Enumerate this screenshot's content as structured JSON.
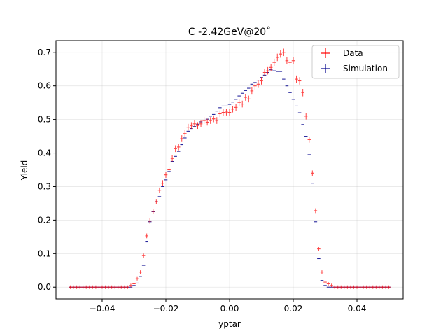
{
  "chart_data": {
    "type": "scatter",
    "title": "C -2.42GeV@20˚",
    "xlabel": "yptar",
    "ylabel": "Yield",
    "xlim": [
      -0.0545,
      0.0545
    ],
    "ylim": [
      -0.035,
      0.735
    ],
    "xticks": [
      -0.04,
      -0.02,
      0.0,
      0.02,
      0.04
    ],
    "xtick_labels": [
      "−0.04",
      "−0.02",
      "0.00",
      "0.02",
      "0.04"
    ],
    "yticks": [
      0.0,
      0.1,
      0.2,
      0.3,
      0.4,
      0.5,
      0.6,
      0.7
    ],
    "ytick_labels": [
      "0.0",
      "0.1",
      "0.2",
      "0.3",
      "0.4",
      "0.5",
      "0.6",
      "0.7"
    ],
    "grid": true,
    "legend": "top-right",
    "bin_halfwidth": 0.0005,
    "series": [
      {
        "name": "Data",
        "color": "#ff0000",
        "x": [
          -0.05,
          -0.049,
          -0.048,
          -0.047,
          -0.046,
          -0.045,
          -0.044,
          -0.043,
          -0.042,
          -0.041,
          -0.04,
          -0.039,
          -0.038,
          -0.037,
          -0.036,
          -0.035,
          -0.034,
          -0.033,
          -0.032,
          -0.031,
          -0.03,
          -0.029,
          -0.028,
          -0.027,
          -0.026,
          -0.025,
          -0.024,
          -0.023,
          -0.022,
          -0.021,
          -0.02,
          -0.019,
          -0.018,
          -0.017,
          -0.016,
          -0.015,
          -0.014,
          -0.013,
          -0.012,
          -0.011,
          -0.01,
          -0.009,
          -0.008,
          -0.007,
          -0.006,
          -0.005,
          -0.004,
          -0.003,
          -0.002,
          -0.001,
          0.0,
          0.001,
          0.002,
          0.003,
          0.004,
          0.005,
          0.006,
          0.007,
          0.008,
          0.009,
          0.01,
          0.011,
          0.012,
          0.013,
          0.014,
          0.015,
          0.016,
          0.017,
          0.018,
          0.019,
          0.02,
          0.021,
          0.022,
          0.023,
          0.024,
          0.025,
          0.026,
          0.027,
          0.028,
          0.029,
          0.03,
          0.031,
          0.032,
          0.033,
          0.034,
          0.035,
          0.036,
          0.037,
          0.038,
          0.039,
          0.04,
          0.041,
          0.042,
          0.043,
          0.044,
          0.045,
          0.046,
          0.047,
          0.048,
          0.049,
          0.05
        ],
        "y": [
          0,
          0,
          0,
          0,
          0,
          0,
          0,
          0,
          0,
          0,
          0,
          0,
          0,
          0,
          0,
          0,
          0,
          0,
          0,
          0.005,
          0.01,
          0.025,
          0.045,
          0.094,
          0.153,
          0.197,
          0.226,
          0.255,
          0.289,
          0.31,
          0.335,
          0.35,
          0.384,
          0.413,
          0.418,
          0.443,
          0.458,
          0.477,
          0.482,
          0.487,
          0.482,
          0.487,
          0.497,
          0.492,
          0.497,
          0.502,
          0.497,
          0.517,
          0.521,
          0.522,
          0.521,
          0.531,
          0.536,
          0.551,
          0.546,
          0.566,
          0.561,
          0.585,
          0.6,
          0.605,
          0.615,
          0.64,
          0.645,
          0.655,
          0.67,
          0.685,
          0.695,
          0.7,
          0.675,
          0.67,
          0.675,
          0.62,
          0.615,
          0.58,
          0.51,
          0.44,
          0.34,
          0.228,
          0.114,
          0.045,
          0.015,
          0.01,
          0.005,
          0,
          0,
          0,
          0,
          0,
          0,
          0,
          0,
          0,
          0,
          0,
          0,
          0,
          0,
          0,
          0,
          0,
          0
        ],
        "yerr": [
          0,
          0,
          0,
          0,
          0,
          0,
          0,
          0,
          0,
          0,
          0,
          0,
          0,
          0,
          0,
          0,
          0,
          0,
          0,
          0.002,
          0.003,
          0.004,
          0.005,
          0.006,
          0.007,
          0.008,
          0.008,
          0.008,
          0.008,
          0.009,
          0.009,
          0.009,
          0.009,
          0.01,
          0.01,
          0.01,
          0.01,
          0.01,
          0.01,
          0.01,
          0.01,
          0.01,
          0.01,
          0.01,
          0.01,
          0.01,
          0.01,
          0.01,
          0.01,
          0.01,
          0.01,
          0.01,
          0.01,
          0.01,
          0.01,
          0.01,
          0.01,
          0.011,
          0.011,
          0.011,
          0.011,
          0.011,
          0.011,
          0.011,
          0.011,
          0.011,
          0.011,
          0.011,
          0.011,
          0.011,
          0.011,
          0.011,
          0.011,
          0.011,
          0.01,
          0.009,
          0.008,
          0.007,
          0.005,
          0.003,
          0.002,
          0.002,
          0.001,
          0,
          0,
          0,
          0,
          0,
          0,
          0,
          0,
          0,
          0,
          0,
          0,
          0,
          0,
          0,
          0,
          0,
          0
        ]
      },
      {
        "name": "Simulation",
        "color": "#00008b",
        "x": [
          -0.05,
          -0.049,
          -0.048,
          -0.047,
          -0.046,
          -0.045,
          -0.044,
          -0.043,
          -0.042,
          -0.041,
          -0.04,
          -0.039,
          -0.038,
          -0.037,
          -0.036,
          -0.035,
          -0.034,
          -0.033,
          -0.032,
          -0.031,
          -0.03,
          -0.029,
          -0.028,
          -0.027,
          -0.026,
          -0.025,
          -0.024,
          -0.023,
          -0.022,
          -0.021,
          -0.02,
          -0.019,
          -0.018,
          -0.017,
          -0.016,
          -0.015,
          -0.014,
          -0.013,
          -0.012,
          -0.011,
          -0.01,
          -0.009,
          -0.008,
          -0.007,
          -0.006,
          -0.005,
          -0.004,
          -0.003,
          -0.002,
          -0.001,
          0.0,
          0.001,
          0.002,
          0.003,
          0.004,
          0.005,
          0.006,
          0.007,
          0.008,
          0.009,
          0.01,
          0.011,
          0.012,
          0.013,
          0.014,
          0.015,
          0.016,
          0.017,
          0.018,
          0.019,
          0.02,
          0.021,
          0.022,
          0.023,
          0.024,
          0.025,
          0.026,
          0.027,
          0.028,
          0.029,
          0.03,
          0.031,
          0.032,
          0.033,
          0.034,
          0.035,
          0.036,
          0.037,
          0.038,
          0.039,
          0.04,
          0.041,
          0.042,
          0.043,
          0.044,
          0.045,
          0.046,
          0.047,
          0.048,
          0.049,
          0.05
        ],
        "y": [
          0,
          0,
          0,
          0,
          0,
          0,
          0,
          0,
          0,
          0,
          0,
          0,
          0,
          0,
          0,
          0,
          0,
          0,
          0,
          0,
          0.005,
          0.012,
          0.032,
          0.065,
          0.135,
          0.195,
          0.225,
          0.255,
          0.27,
          0.3,
          0.32,
          0.345,
          0.375,
          0.39,
          0.405,
          0.425,
          0.445,
          0.465,
          0.473,
          0.479,
          0.486,
          0.493,
          0.498,
          0.501,
          0.51,
          0.515,
          0.525,
          0.535,
          0.54,
          0.54,
          0.545,
          0.552,
          0.56,
          0.57,
          0.578,
          0.586,
          0.593,
          0.605,
          0.61,
          0.617,
          0.625,
          0.632,
          0.64,
          0.648,
          0.645,
          0.643,
          0.643,
          0.62,
          0.6,
          0.58,
          0.56,
          0.54,
          0.52,
          0.485,
          0.45,
          0.395,
          0.31,
          0.195,
          0.085,
          0.02,
          0.005,
          0,
          0,
          0,
          0,
          0,
          0,
          0,
          0,
          0,
          0,
          0,
          0,
          0,
          0,
          0,
          0,
          0,
          0,
          0,
          0
        ],
        "yerr": [
          0,
          0,
          0,
          0,
          0,
          0,
          0,
          0,
          0,
          0,
          0,
          0,
          0,
          0,
          0,
          0,
          0,
          0,
          0,
          0,
          0,
          0,
          0,
          0,
          0,
          0,
          0,
          0,
          0,
          0,
          0,
          0,
          0,
          0,
          0,
          0,
          0,
          0,
          0,
          0,
          0,
          0,
          0,
          0,
          0,
          0,
          0,
          0,
          0,
          0,
          0,
          0,
          0,
          0,
          0,
          0,
          0,
          0,
          0,
          0,
          0,
          0,
          0,
          0,
          0,
          0,
          0,
          0,
          0,
          0,
          0,
          0,
          0,
          0,
          0,
          0,
          0,
          0,
          0,
          0,
          0,
          0,
          0,
          0,
          0,
          0,
          0,
          0,
          0,
          0,
          0,
          0,
          0,
          0,
          0,
          0,
          0,
          0,
          0,
          0,
          0
        ]
      }
    ]
  }
}
